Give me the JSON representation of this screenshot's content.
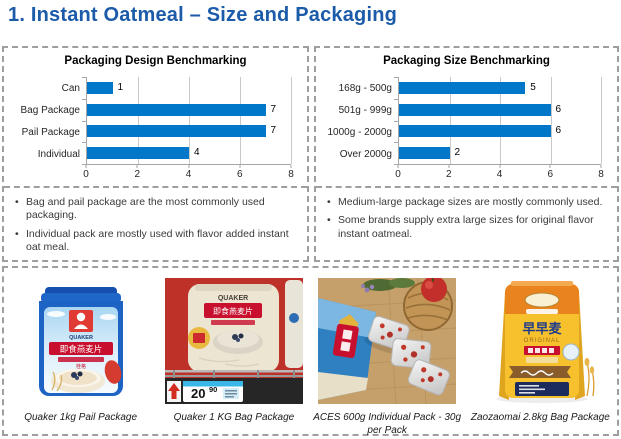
{
  "page_title": "1. Instant Oatmeal – Size and Packaging",
  "chart_data": [
    {
      "type": "bar",
      "orientation": "horizontal",
      "title": "Packaging Design Benchmarking",
      "categories": [
        "Can",
        "Bag Package",
        "Pail Package",
        "Individual"
      ],
      "values": [
        1,
        7,
        7,
        4
      ],
      "xlim": [
        0,
        8
      ],
      "xticks": [
        0,
        2,
        4,
        6,
        8
      ],
      "grid": true,
      "legend": false,
      "value_labels": true,
      "bar_color": "#0077C8"
    },
    {
      "type": "bar",
      "orientation": "horizontal",
      "title": "Packaging Size Benchmarking",
      "categories": [
        "168g - 500g",
        "501g - 999g",
        "1000g - 2000g",
        "Over 2000g"
      ],
      "values": [
        5,
        6,
        6,
        2
      ],
      "xlim": [
        0,
        8
      ],
      "xticks": [
        0,
        2,
        4,
        6,
        8
      ],
      "grid": true,
      "legend": false,
      "value_labels": true,
      "bar_color": "#0077C8"
    }
  ],
  "notes": {
    "left": [
      "Bag and pail package are the most commonly used packaging.",
      "Individual pack are mostly used with flavor added instant oat meal."
    ],
    "right": [
      "Medium-large package sizes are mostly commonly used.",
      "Some brands supply extra large sizes for original flavor instant oatmeal."
    ]
  },
  "products": [
    {
      "caption": "Quaker 1kg Pail Package",
      "image": "quaker-1kg-pail",
      "cn_brand": "桂格",
      "brand_text": "QUAKER",
      "label_text": "即食燕麦片"
    },
    {
      "caption": "Quaker 1 KG Bag Package",
      "image": "quaker-1kg-bag",
      "brand_text": "QUAKER",
      "label_text": "即食燕麦片",
      "price_main": "20",
      "price_sup": "90"
    },
    {
      "caption": "ACES 600g Individual Pack - 30g per Pack",
      "image": "aces-600g-individual-pack"
    },
    {
      "caption": "Zaozaomai 2.8kg Bag Package",
      "image": "zaozaomai-2.8kg-bag",
      "brand_text": "早早麦",
      "sub_text": "ORIGINAL"
    }
  ],
  "colors": {
    "title": "#1B5BA9",
    "bar": "#0077C8",
    "panel_border": "#9E9E9E",
    "gridline": "#C9C9C9",
    "axis": "#A6A6A6"
  }
}
